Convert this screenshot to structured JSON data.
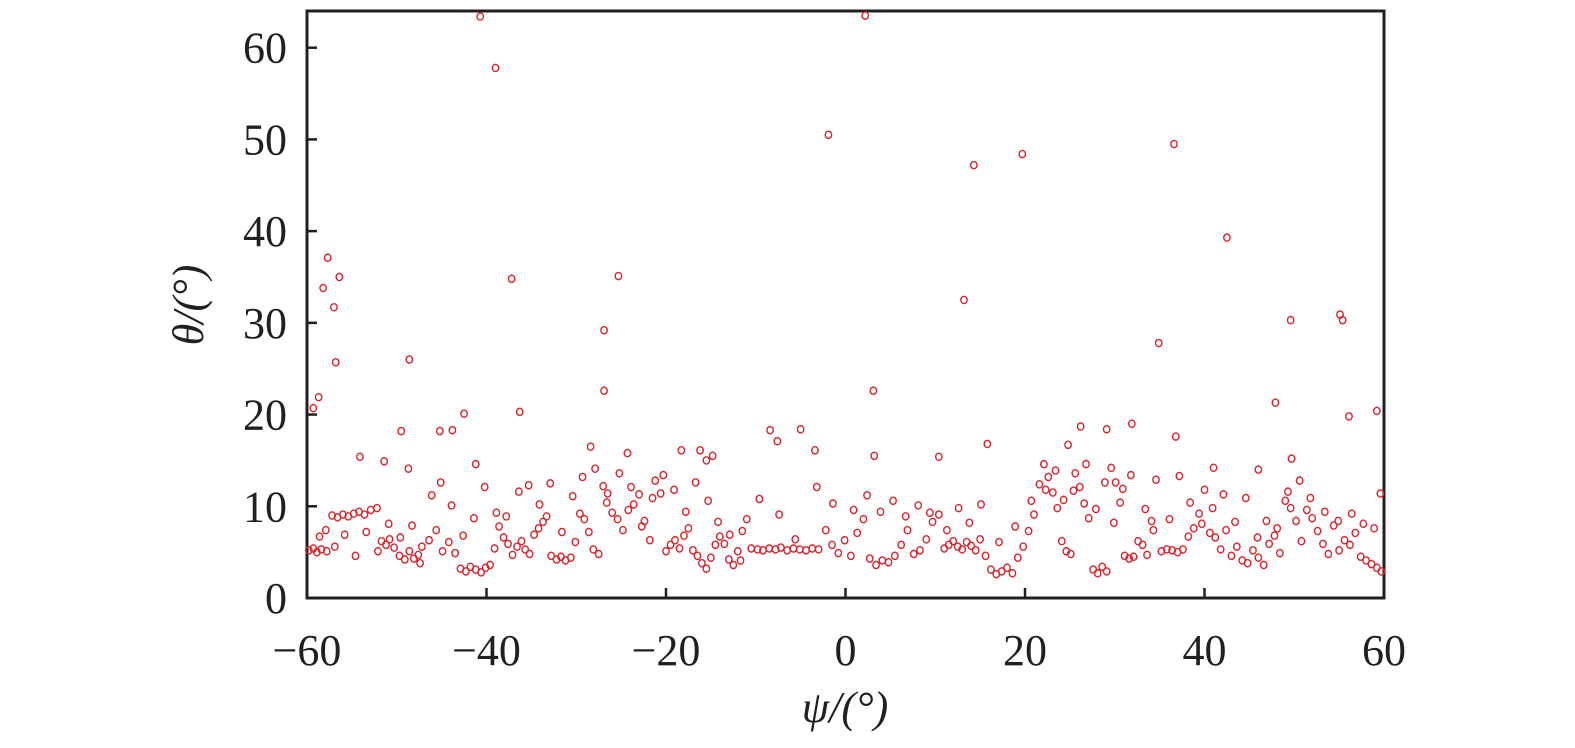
{
  "chart_data": {
    "type": "scatter",
    "xlabel": "ψ/(°)",
    "ylabel": "θ/(°)",
    "xlim": [
      -60,
      60
    ],
    "ylim": [
      0,
      64
    ],
    "x_ticks": [
      -60,
      -40,
      -20,
      0,
      20,
      40,
      60
    ],
    "x_tick_labels": [
      "−60",
      "−40",
      "−20",
      "0",
      "20",
      "40",
      "60"
    ],
    "y_ticks": [
      0,
      10,
      20,
      30,
      40,
      50,
      60
    ],
    "y_tick_labels": [
      "0",
      "10",
      "20",
      "30",
      "40",
      "50",
      "60"
    ],
    "grid": false,
    "marker": "open-circle",
    "color": "#d8232a",
    "points": [
      [
        -40.7,
        63.4
      ],
      [
        -39,
        57.8
      ],
      [
        -59.3,
        20.7
      ],
      [
        -58.7,
        21.9
      ],
      [
        -58.2,
        33.8
      ],
      [
        -57.7,
        37.1
      ],
      [
        -57,
        31.7
      ],
      [
        -56.8,
        25.7
      ],
      [
        -56.4,
        35
      ],
      [
        -49.5,
        18.2
      ],
      [
        -48.6,
        26
      ],
      [
        -45.2,
        18.2
      ],
      [
        -43.8,
        18.3
      ],
      [
        -42.5,
        20.1
      ],
      [
        -37.2,
        34.8
      ],
      [
        -36.3,
        20.3
      ],
      [
        -26.9,
        29.2
      ],
      [
        -26.9,
        22.6
      ],
      [
        -25.3,
        35.1
      ],
      [
        -1.9,
        50.5
      ],
      [
        2.2,
        63.5
      ],
      [
        3.1,
        22.6
      ],
      [
        3.2,
        15.5
      ],
      [
        10.4,
        15.4
      ],
      [
        13.2,
        32.5
      ],
      [
        14.3,
        47.2
      ],
      [
        15.8,
        16.8
      ],
      [
        19.7,
        48.4
      ],
      [
        31.9,
        19
      ],
      [
        34.9,
        27.8
      ],
      [
        36.6,
        49.5
      ],
      [
        36.8,
        17.6
      ],
      [
        42.5,
        39.3
      ],
      [
        47.9,
        21.3
      ],
      [
        49.6,
        30.3
      ],
      [
        55.1,
        30.9
      ],
      [
        55.4,
        30.3
      ],
      [
        56.1,
        19.8
      ],
      [
        59.2,
        20.4
      ],
      [
        -8.4,
        18.3
      ],
      [
        -7.6,
        17.1
      ],
      [
        -5,
        18.4
      ],
      [
        -3.4,
        16.1
      ],
      [
        -28.4,
        16.5
      ],
      [
        -18.3,
        16.1
      ],
      [
        -16.2,
        16.1
      ],
      [
        -15.5,
        15
      ],
      [
        -14.8,
        15.5
      ],
      [
        -24.3,
        15.8
      ],
      [
        26.2,
        18.7
      ],
      [
        29.1,
        18.4
      ],
      [
        24.8,
        16.7
      ],
      [
        37.2,
        13.3
      ],
      [
        41,
        14.2
      ],
      [
        -54.1,
        15.4
      ],
      [
        -51.4,
        14.9
      ],
      [
        -48.7,
        14.1
      ],
      [
        -41.2,
        14.6
      ],
      [
        46,
        14
      ],
      [
        49.7,
        15.2
      ],
      [
        -59.8,
        5.2
      ],
      [
        -59.3,
        5.4
      ],
      [
        -58.9,
        5
      ],
      [
        -58.4,
        5.3
      ],
      [
        -57.8,
        5.1
      ],
      [
        -57.2,
        9
      ],
      [
        -56.6,
        8.8
      ],
      [
        -56,
        9.1
      ],
      [
        -55.4,
        8.9
      ],
      [
        -54.8,
        9.2
      ],
      [
        -54.2,
        9.4
      ],
      [
        -53.6,
        9.1
      ],
      [
        -52.9,
        9.6
      ],
      [
        -52.2,
        9.8
      ],
      [
        -51.7,
        6.2
      ],
      [
        -51.2,
        5.8
      ],
      [
        -50.8,
        6.4
      ],
      [
        -50.3,
        5.5
      ],
      [
        -49.7,
        4.6
      ],
      [
        -49.1,
        4.2
      ],
      [
        -48.6,
        5.1
      ],
      [
        -48.1,
        4.3
      ],
      [
        -47.6,
        4.7
      ],
      [
        -47.2,
        5.6
      ],
      [
        -46.4,
        6.3
      ],
      [
        -45.6,
        7.4
      ],
      [
        -44.9,
        5.1
      ],
      [
        -44.2,
        6.1
      ],
      [
        -43.5,
        4.9
      ],
      [
        -42.9,
        3.2
      ],
      [
        -42.3,
        2.9
      ],
      [
        -41.8,
        3.4
      ],
      [
        -41.2,
        3.1
      ],
      [
        -40.6,
        2.8
      ],
      [
        -40.1,
        3.3
      ],
      [
        -39.6,
        3.6
      ],
      [
        -39.1,
        5.4
      ],
      [
        -38.6,
        7.8
      ],
      [
        -38.1,
        6.6
      ],
      [
        -37.6,
        5.9
      ],
      [
        -37.1,
        4.7
      ],
      [
        -36.6,
        5.6
      ],
      [
        -36.1,
        6.2
      ],
      [
        -35.7,
        5.3
      ],
      [
        -35.2,
        4.8
      ],
      [
        -34.7,
        6.9
      ],
      [
        -34.2,
        7.6
      ],
      [
        -33.7,
        8.3
      ],
      [
        -33.3,
        8.9
      ],
      [
        -32.8,
        4.6
      ],
      [
        -32.2,
        4.2
      ],
      [
        -31.7,
        4.5
      ],
      [
        -31.2,
        4.1
      ],
      [
        -30.6,
        4.4
      ],
      [
        -30.1,
        6.1
      ],
      [
        -29.6,
        9.2
      ],
      [
        -29.1,
        8.6
      ],
      [
        -28.6,
        7.2
      ],
      [
        -28.1,
        5.3
      ],
      [
        -27.5,
        4.8
      ],
      [
        -27,
        12.2
      ],
      [
        -26.5,
        11.4
      ],
      [
        -26,
        9.3
      ],
      [
        -25.4,
        8.6
      ],
      [
        -24.8,
        7.4
      ],
      [
        -24.2,
        9.6
      ],
      [
        -23.6,
        10.2
      ],
      [
        -23,
        11.3
      ],
      [
        -22.4,
        8.4
      ],
      [
        -21.8,
        6.3
      ],
      [
        -21.2,
        12.8
      ],
      [
        -20.6,
        11.4
      ],
      [
        -20,
        5.1
      ],
      [
        -19.5,
        5.8
      ],
      [
        -19,
        6.3
      ],
      [
        -18.5,
        5.4
      ],
      [
        -18,
        6.8
      ],
      [
        -17.5,
        7.6
      ],
      [
        -17,
        5.2
      ],
      [
        -16.5,
        4.6
      ],
      [
        -16,
        3.8
      ],
      [
        -15.5,
        3.2
      ],
      [
        -15,
        4.4
      ],
      [
        -14.5,
        5.8
      ],
      [
        -14,
        6.7
      ],
      [
        -13.5,
        5.9
      ],
      [
        -13,
        4.2
      ],
      [
        -12.5,
        3.6
      ],
      [
        -12,
        5.1
      ],
      [
        -11.5,
        7.3
      ],
      [
        -11,
        8.6
      ],
      [
        -10.5,
        5.4
      ],
      [
        -9.8,
        5.3
      ],
      [
        -9.2,
        5.2
      ],
      [
        -8.5,
        5.4
      ],
      [
        -7.8,
        5.3
      ],
      [
        -7.2,
        5.5
      ],
      [
        -6.5,
        5.2
      ],
      [
        -5.8,
        5.4
      ],
      [
        -5.1,
        5.3
      ],
      [
        -4.4,
        5.2
      ],
      [
        -3.7,
        5.4
      ],
      [
        -3,
        5.3
      ],
      [
        -2.2,
        7.4
      ],
      [
        -1.5,
        5.8
      ],
      [
        -0.8,
        4.9
      ],
      [
        -0.1,
        6.3
      ],
      [
        0.6,
        4.6
      ],
      [
        1.3,
        7.1
      ],
      [
        2,
        8.6
      ],
      [
        2.7,
        4.3
      ],
      [
        3.4,
        3.6
      ],
      [
        4.1,
        4.1
      ],
      [
        4.8,
        3.9
      ],
      [
        5.5,
        4.6
      ],
      [
        6.2,
        5.8
      ],
      [
        6.9,
        7.4
      ],
      [
        7.6,
        4.8
      ],
      [
        8.3,
        5.2
      ],
      [
        9,
        6.4
      ],
      [
        9.7,
        8.3
      ],
      [
        10.4,
        9.1
      ],
      [
        11,
        5.4
      ],
      [
        11.5,
        5.8
      ],
      [
        12,
        6.2
      ],
      [
        12.5,
        5.6
      ],
      [
        13,
        5.3
      ],
      [
        13.5,
        6.1
      ],
      [
        14,
        5.7
      ],
      [
        14.5,
        5.2
      ],
      [
        15,
        6.4
      ],
      [
        15.6,
        4.6
      ],
      [
        16.2,
        3.1
      ],
      [
        16.8,
        2.6
      ],
      [
        17.4,
        2.9
      ],
      [
        18,
        3.3
      ],
      [
        18.6,
        2.7
      ],
      [
        19.2,
        4.4
      ],
      [
        19.8,
        5.6
      ],
      [
        20.4,
        7.3
      ],
      [
        21,
        9.1
      ],
      [
        21.6,
        12.4
      ],
      [
        22.1,
        14.6
      ],
      [
        22.6,
        13.2
      ],
      [
        23.1,
        11.5
      ],
      [
        23.6,
        9.8
      ],
      [
        24.1,
        6.2
      ],
      [
        24.6,
        5.1
      ],
      [
        25.1,
        4.8
      ],
      [
        25.6,
        13.6
      ],
      [
        26.1,
        12.1
      ],
      [
        26.6,
        10.3
      ],
      [
        27.1,
        8.7
      ],
      [
        27.6,
        3.1
      ],
      [
        28.1,
        2.7
      ],
      [
        28.6,
        3.4
      ],
      [
        29.1,
        2.9
      ],
      [
        29.6,
        14.2
      ],
      [
        30.1,
        12.6
      ],
      [
        30.6,
        10.4
      ],
      [
        31.1,
        4.6
      ],
      [
        31.6,
        4.3
      ],
      [
        32.1,
        4.5
      ],
      [
        32.6,
        6.2
      ],
      [
        33.1,
        5.8
      ],
      [
        33.6,
        4.7
      ],
      [
        34.1,
        8.4
      ],
      [
        34.6,
        12.9
      ],
      [
        35.2,
        5.1
      ],
      [
        35.8,
        5.3
      ],
      [
        36.4,
        5.2
      ],
      [
        37,
        5
      ],
      [
        37.6,
        5.3
      ],
      [
        38.2,
        6.7
      ],
      [
        38.8,
        7.6
      ],
      [
        39.4,
        9.2
      ],
      [
        40,
        11.8
      ],
      [
        40.6,
        7.1
      ],
      [
        41.2,
        6.6
      ],
      [
        41.8,
        5.3
      ],
      [
        42.4,
        7.4
      ],
      [
        43,
        4.6
      ],
      [
        43.6,
        5.6
      ],
      [
        44.2,
        4.1
      ],
      [
        44.8,
        3.8
      ],
      [
        45.4,
        5.2
      ],
      [
        46,
        4.4
      ],
      [
        46.6,
        3.6
      ],
      [
        47.2,
        5.9
      ],
      [
        47.8,
        6.8
      ],
      [
        48.4,
        4.9
      ],
      [
        49,
        10.6
      ],
      [
        49.6,
        9.8
      ],
      [
        50.2,
        8.4
      ],
      [
        50.8,
        6.2
      ],
      [
        51.4,
        9.6
      ],
      [
        52,
        8.7
      ],
      [
        52.6,
        7.3
      ],
      [
        53.2,
        5.9
      ],
      [
        53.8,
        4.8
      ],
      [
        54.4,
        7.9
      ],
      [
        55,
        5.2
      ],
      [
        55.6,
        6.3
      ],
      [
        56.2,
        5.8
      ],
      [
        56.8,
        7.1
      ],
      [
        57.4,
        4.5
      ],
      [
        58,
        4.1
      ],
      [
        58.6,
        3.7
      ],
      [
        59.2,
        3.3
      ],
      [
        59.7,
        2.9
      ],
      [
        -58.6,
        6.7
      ],
      [
        -57.9,
        7.4
      ],
      [
        -56.9,
        5.6
      ],
      [
        -55.8,
        6.9
      ],
      [
        -54.6,
        4.6
      ],
      [
        -53.4,
        7.2
      ],
      [
        -52.1,
        5.1
      ],
      [
        -50.9,
        8.1
      ],
      [
        -49.6,
        6.6
      ],
      [
        -48.3,
        7.9
      ],
      [
        -47.4,
        3.8
      ],
      [
        -46.1,
        11.2
      ],
      [
        -45.1,
        12.6
      ],
      [
        -43.9,
        10.1
      ],
      [
        -42.6,
        6.8
      ],
      [
        -41.4,
        8.7
      ],
      [
        -40.2,
        12.1
      ],
      [
        -38.9,
        9.3
      ],
      [
        -37.8,
        8.9
      ],
      [
        -36.4,
        11.6
      ],
      [
        -35.3,
        12.3
      ],
      [
        -34.1,
        10.2
      ],
      [
        -32.9,
        12.5
      ],
      [
        -31.6,
        7.2
      ],
      [
        -30.4,
        11.1
      ],
      [
        -29.3,
        13.2
      ],
      [
        -27.9,
        14.1
      ],
      [
        -26.6,
        10.4
      ],
      [
        -25.2,
        13.6
      ],
      [
        -23.9,
        12.1
      ],
      [
        -22.7,
        7.8
      ],
      [
        -21.5,
        10.9
      ],
      [
        -20.3,
        13.4
      ],
      [
        -19.1,
        11.8
      ],
      [
        -17.8,
        9.4
      ],
      [
        -16.7,
        12.6
      ],
      [
        -15.3,
        10.6
      ],
      [
        -14.2,
        8.3
      ],
      [
        -12.9,
        6.9
      ],
      [
        -11.7,
        4.1
      ],
      [
        -9.6,
        10.8
      ],
      [
        -7.4,
        9.1
      ],
      [
        -5.6,
        6.4
      ],
      [
        -3.2,
        12.1
      ],
      [
        -1.4,
        10.3
      ],
      [
        0.9,
        9.6
      ],
      [
        2.4,
        11.2
      ],
      [
        3.9,
        9.4
      ],
      [
        5.3,
        10.6
      ],
      [
        6.7,
        8.9
      ],
      [
        8.1,
        10.1
      ],
      [
        9.4,
        9.3
      ],
      [
        11.3,
        7.4
      ],
      [
        12.6,
        9.8
      ],
      [
        13.8,
        8.2
      ],
      [
        15.1,
        10.2
      ],
      [
        17.1,
        6.1
      ],
      [
        18.9,
        7.8
      ],
      [
        20.7,
        10.6
      ],
      [
        22.3,
        11.8
      ],
      [
        23.4,
        13.9
      ],
      [
        24.3,
        10.7
      ],
      [
        25.4,
        11.7
      ],
      [
        26.8,
        14.6
      ],
      [
        27.9,
        9.7
      ],
      [
        28.9,
        12.6
      ],
      [
        29.9,
        8.2
      ],
      [
        30.9,
        11.9
      ],
      [
        31.8,
        13.4
      ],
      [
        33.4,
        9.7
      ],
      [
        34.3,
        7.4
      ],
      [
        36.1,
        8.6
      ],
      [
        38.4,
        10.4
      ],
      [
        39.7,
        8.1
      ],
      [
        40.9,
        9.8
      ],
      [
        42.1,
        11.3
      ],
      [
        43.4,
        8.3
      ],
      [
        44.6,
        10.9
      ],
      [
        45.9,
        6.6
      ],
      [
        46.9,
        8.4
      ],
      [
        48.1,
        7.6
      ],
      [
        49.3,
        11.6
      ],
      [
        50.6,
        12.8
      ],
      [
        51.8,
        10.9
      ],
      [
        53.4,
        9.4
      ],
      [
        54.9,
        8.4
      ],
      [
        56.4,
        9.2
      ],
      [
        57.7,
        8.1
      ],
      [
        58.9,
        7.6
      ],
      [
        59.6,
        11.4
      ]
    ]
  }
}
